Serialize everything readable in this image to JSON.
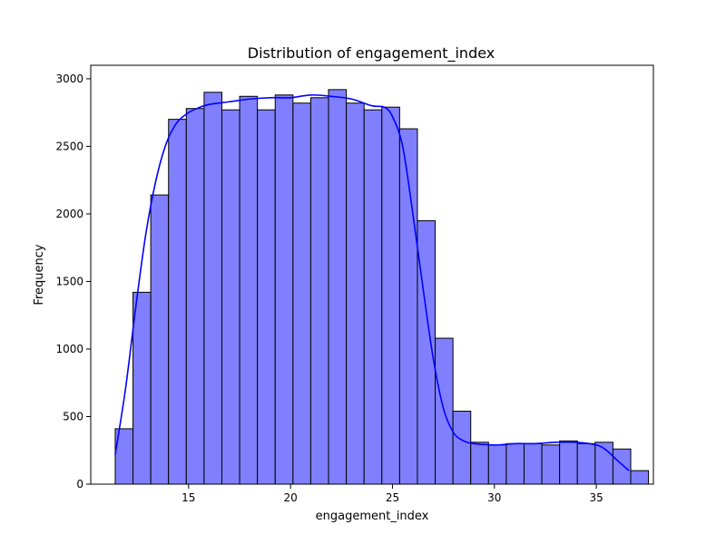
{
  "chart_data": {
    "type": "bar",
    "title": "Distribution of engagement_index",
    "xlabel": "engagement_index",
    "ylabel": "Frequency",
    "xlim": [
      10.2,
      37.8
    ],
    "ylim": [
      0,
      3100
    ],
    "xticks": [
      15,
      20,
      25,
      30,
      35
    ],
    "yticks": [
      0,
      500,
      1000,
      1500,
      2000,
      2500,
      3000
    ],
    "bins": {
      "start": 11.4,
      "width": 0.872,
      "counts": [
        410,
        1420,
        2140,
        2700,
        2780,
        2900,
        2770,
        2870,
        2770,
        2880,
        2820,
        2860,
        2920,
        2820,
        2770,
        2790,
        2630,
        1950,
        1080,
        540,
        310,
        290,
        300,
        300,
        290,
        320,
        300,
        310,
        260,
        100
      ]
    },
    "kde": {
      "x": [
        11.4,
        11.9,
        12.4,
        12.9,
        13.4,
        13.9,
        14.4,
        14.9,
        15.4,
        16,
        17,
        18,
        19,
        20,
        21,
        22,
        23,
        24,
        24.6,
        25,
        25.5,
        26,
        26.5,
        27,
        27.5,
        28,
        28.5,
        29,
        30,
        31,
        32,
        33,
        34,
        35,
        35.5,
        36,
        36.6
      ],
      "y": [
        220,
        700,
        1300,
        1850,
        2250,
        2520,
        2670,
        2740,
        2780,
        2810,
        2830,
        2850,
        2860,
        2860,
        2880,
        2870,
        2850,
        2800,
        2790,
        2720,
        2500,
        2000,
        1450,
        930,
        560,
        380,
        320,
        300,
        290,
        300,
        300,
        310,
        310,
        290,
        250,
        180,
        100
      ]
    },
    "bar_color": "#8080ff",
    "bar_edge_color": "#000000",
    "kde_color": "#0000ff",
    "grid": false,
    "legend": false
  }
}
